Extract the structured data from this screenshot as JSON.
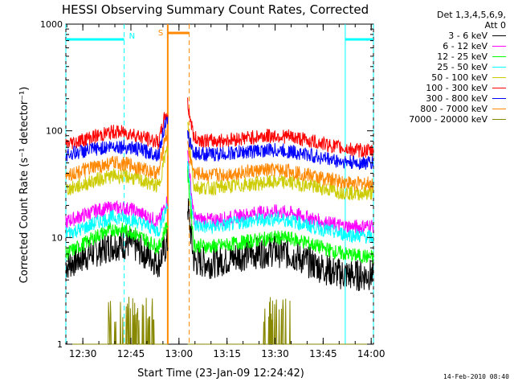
{
  "page": {
    "timestamp": "14-Feb-2010 08:40"
  },
  "legend": {
    "header_line1": "Det 1,3,4,5,6,9,",
    "header_line2": "Att 0"
  },
  "chart_data": {
    "type": "line",
    "title": "HESSI Observing Summary Count Rates, Corrected",
    "xlabel": "Start Time (23-Jan-09 12:24:42)",
    "ylabel": "Corrected Count Rate (s⁻¹ detector⁻¹)",
    "x_unit": "minutes after 12:24:42",
    "xlim": [
      0,
      96
    ],
    "ylim": [
      1,
      1000
    ],
    "y_scale": "log",
    "x_ticks": [
      {
        "label": "12:30",
        "value": 5.3
      },
      {
        "label": "12:45",
        "value": 20.3
      },
      {
        "label": "13:00",
        "value": 35.3
      },
      {
        "label": "13:15",
        "value": 50.3
      },
      {
        "label": "13:30",
        "value": 65.3
      },
      {
        "label": "13:45",
        "value": 80.3
      },
      {
        "label": "14:00",
        "value": 95.3
      }
    ],
    "y_ticks": [
      {
        "label": "1",
        "value": 1
      },
      {
        "label": "10",
        "value": 10
      },
      {
        "label": "100",
        "value": 100
      },
      {
        "label": "1000",
        "value": 1000
      }
    ],
    "night_markers": [
      {
        "label": "N",
        "start": 0,
        "end": 18.2,
        "color": "#00ffff"
      },
      {
        "label": "N",
        "start": 87.2,
        "end": 96,
        "color": "#00ffff"
      }
    ],
    "saa_marker": {
      "label": "S",
      "start": 31.8,
      "end": 38.5,
      "color": "#ff8800"
    },
    "gap": {
      "start": 31.8,
      "end": 38.0
    },
    "series": [
      {
        "name": "3 - 6 keV",
        "color": "#000000",
        "x": [
          0,
          5,
          10,
          15,
          20,
          25,
          29,
          31,
          38,
          40,
          45,
          50,
          55,
          60,
          65,
          70,
          75,
          80,
          85,
          90,
          96
        ],
        "values": [
          5.5,
          6.5,
          7.5,
          8.5,
          8.8,
          7.0,
          5.8,
          8,
          20,
          6.0,
          5.8,
          6.2,
          6.8,
          7.2,
          7.5,
          7.0,
          6.0,
          5.2,
          4.6,
          4.4,
          4.5
        ]
      },
      {
        "name": "6 - 12 keV",
        "color": "#ff00ff",
        "x": [
          0,
          5,
          10,
          15,
          20,
          25,
          29,
          31,
          38,
          40,
          45,
          50,
          55,
          60,
          65,
          70,
          75,
          80,
          85,
          90,
          96
        ],
        "values": [
          14,
          16,
          18,
          19,
          18.5,
          16,
          14,
          20,
          60,
          15,
          14.5,
          15,
          16,
          17,
          17.5,
          17,
          15.5,
          14,
          13,
          12.5,
          13
        ]
      },
      {
        "name": "12 - 25 keV",
        "color": "#00ff00",
        "x": [
          0,
          5,
          10,
          15,
          20,
          25,
          29,
          31,
          38,
          40,
          45,
          50,
          55,
          60,
          65,
          70,
          75,
          80,
          85,
          90,
          96
        ],
        "values": [
          7,
          8.5,
          10.5,
          12,
          11.5,
          9.5,
          8,
          12,
          40,
          8.5,
          8.2,
          8.5,
          9,
          9.5,
          10,
          9.8,
          9,
          8,
          7.2,
          6.8,
          6.5
        ]
      },
      {
        "name": "25 - 50 keV",
        "color": "#00ffff",
        "x": [
          0,
          5,
          10,
          15,
          20,
          25,
          29,
          31,
          38,
          40,
          45,
          50,
          55,
          60,
          65,
          70,
          75,
          80,
          85,
          90,
          96
        ],
        "values": [
          11,
          12,
          14,
          15.5,
          15,
          13,
          11.5,
          18,
          50,
          13,
          12.5,
          13,
          14,
          14.5,
          15,
          14.5,
          13,
          12,
          11,
          10.5,
          10
        ]
      },
      {
        "name": "50 - 100 keV",
        "color": "#cccc00",
        "x": [
          0,
          5,
          10,
          15,
          20,
          25,
          29,
          31,
          38,
          40,
          45,
          50,
          55,
          60,
          65,
          70,
          75,
          80,
          85,
          90,
          96
        ],
        "values": [
          28,
          31,
          35,
          38,
          37,
          33,
          30,
          60,
          120,
          30,
          29,
          30,
          31,
          32,
          33,
          33,
          31,
          29,
          27,
          26,
          26
        ]
      },
      {
        "name": "100 - 300 keV",
        "color": "#ff0000",
        "x": [
          0,
          5,
          10,
          15,
          20,
          25,
          29,
          31,
          38,
          40,
          45,
          50,
          55,
          60,
          65,
          70,
          75,
          80,
          85,
          90,
          96
        ],
        "values": [
          75,
          82,
          90,
          98,
          95,
          85,
          78,
          140,
          180,
          85,
          80,
          82,
          85,
          88,
          90,
          88,
          82,
          76,
          70,
          66,
          64
        ]
      },
      {
        "name": "300 - 800 keV",
        "color": "#0000ff",
        "x": [
          0,
          5,
          10,
          15,
          20,
          25,
          29,
          31,
          38,
          40,
          45,
          50,
          55,
          60,
          65,
          70,
          75,
          80,
          85,
          90,
          96
        ],
        "values": [
          60,
          64,
          68,
          72,
          70,
          64,
          60,
          120,
          90,
          62,
          60,
          61,
          63,
          65,
          66,
          64,
          60,
          56,
          52,
          50,
          50
        ]
      },
      {
        "name": "800 - 7000 keV",
        "color": "#ff8800",
        "x": [
          0,
          5,
          10,
          15,
          20,
          25,
          29,
          31,
          38,
          40,
          45,
          50,
          55,
          60,
          65,
          70,
          75,
          80,
          85,
          90,
          96
        ],
        "values": [
          38,
          42,
          46,
          50,
          48,
          43,
          40,
          90,
          70,
          40,
          38,
          39,
          41,
          42,
          43,
          42,
          39,
          36,
          34,
          32,
          32
        ]
      },
      {
        "name": "7000 - 20000 keV",
        "color": "#888800",
        "x": [
          0,
          5,
          10,
          15,
          20,
          25,
          29,
          31,
          38,
          40,
          45,
          50,
          55,
          60,
          65,
          70,
          75,
          80,
          85,
          90,
          96
        ],
        "values": [
          1,
          1,
          1,
          1.8,
          1.8,
          1,
          1,
          3,
          4,
          1,
          1,
          1,
          1,
          1,
          1.8,
          1,
          1,
          1,
          1,
          1,
          1
        ]
      }
    ]
  }
}
